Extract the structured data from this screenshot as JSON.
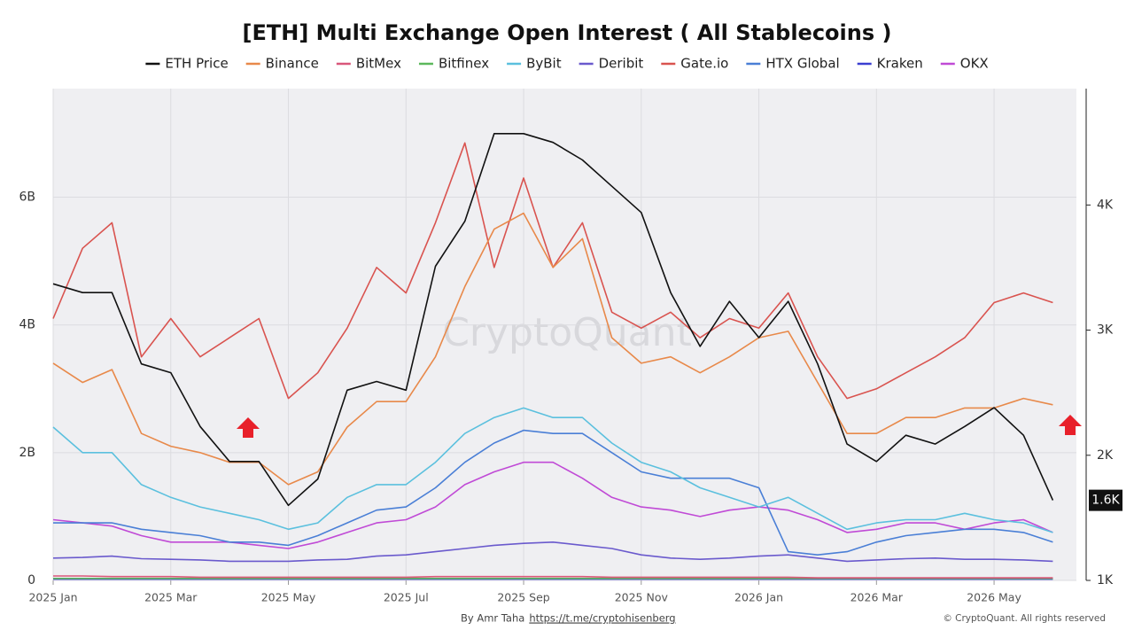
{
  "chart_data": {
    "type": "line",
    "title": "[ETH] Multi Exchange Open Interest ( All Stablecoins )",
    "watermark": "CryptoQuant",
    "x": [
      0,
      0.5,
      1,
      1.5,
      2,
      2.5,
      3,
      3.5,
      4,
      4.5,
      5,
      5.5,
      6,
      6.5,
      7,
      7.5,
      8,
      8.5,
      9,
      9.5,
      10,
      10.5,
      11,
      11.5,
      12,
      12.5,
      13,
      13.5,
      14,
      14.5,
      15,
      15.5,
      16,
      16.5,
      17
    ],
    "xlim": [
      0,
      17.4
    ],
    "xticks": [
      {
        "value": 0,
        "label": "2025 Jan"
      },
      {
        "value": 2,
        "label": "2025 Mar"
      },
      {
        "value": 4,
        "label": "2025 May"
      },
      {
        "value": 6,
        "label": "2025 Jul"
      },
      {
        "value": 8,
        "label": "2025 Sep"
      },
      {
        "value": 10,
        "label": "2025 Nov"
      },
      {
        "value": 12,
        "label": "2026 Jan"
      },
      {
        "value": 14,
        "label": "2026 Mar"
      },
      {
        "value": 16,
        "label": "2026 May"
      }
    ],
    "ylim": [
      0,
      7.7
    ],
    "yticks": [
      0,
      {
        "value": 2,
        "label": "2B"
      },
      {
        "value": 4,
        "label": "4B"
      },
      {
        "value": 6,
        "label": "6B"
      }
    ],
    "y2lim": [
      1000,
      4930
    ],
    "y2ticks": [
      {
        "value": 1000,
        "label": "1K"
      },
      {
        "value": 2000,
        "label": "2K"
      },
      {
        "value": 3000,
        "label": "3K"
      },
      {
        "value": 4000,
        "label": "4K"
      }
    ],
    "price_label": {
      "value": 1640,
      "label": "1.6K"
    },
    "grid": true,
    "legend": "top",
    "series": [
      {
        "name": "ETH Price",
        "color": "#111111",
        "axis": "y2",
        "values": [
          3370,
          3300,
          3300,
          2730,
          2660,
          2230,
          1950,
          1950,
          1600,
          1810,
          2520,
          2590,
          2520,
          3510,
          3870,
          4570,
          4570,
          4500,
          4360,
          4150,
          3940,
          3300,
          2870,
          3230,
          2940,
          3230,
          2730,
          2090,
          1950,
          2160,
          2090,
          2230,
          2380,
          2160,
          1640
        ]
      },
      {
        "name": "Binance",
        "color": "#e8894a",
        "values": [
          3.4,
          3.1,
          3.3,
          2.3,
          2.1,
          2.0,
          1.85,
          1.85,
          1.5,
          1.7,
          2.4,
          2.8,
          2.8,
          3.5,
          4.6,
          5.5,
          5.75,
          4.9,
          5.35,
          3.8,
          3.4,
          3.5,
          3.25,
          3.5,
          3.8,
          3.9,
          3.1,
          2.3,
          2.3,
          2.55,
          2.55,
          2.7,
          2.7,
          2.85,
          2.75
        ]
      },
      {
        "name": "BitMex",
        "color": "#d9577a",
        "values": [
          0.07,
          0.07,
          0.06,
          0.06,
          0.06,
          0.05,
          0.05,
          0.05,
          0.05,
          0.05,
          0.05,
          0.05,
          0.05,
          0.06,
          0.06,
          0.06,
          0.06,
          0.06,
          0.06,
          0.05,
          0.05,
          0.05,
          0.05,
          0.05,
          0.05,
          0.05,
          0.04,
          0.04,
          0.04,
          0.04,
          0.04,
          0.04,
          0.04,
          0.04,
          0.04
        ]
      },
      {
        "name": "Bitfinex",
        "color": "#5cb85c",
        "values": [
          0.03,
          0.03,
          0.03,
          0.03,
          0.03,
          0.03,
          0.03,
          0.03,
          0.03,
          0.03,
          0.03,
          0.03,
          0.03,
          0.03,
          0.03,
          0.03,
          0.03,
          0.03,
          0.03,
          0.03,
          0.03,
          0.03,
          0.03,
          0.03,
          0.03,
          0.03,
          0.03,
          0.03,
          0.03,
          0.03,
          0.03,
          0.03,
          0.03,
          0.03,
          0.03
        ]
      },
      {
        "name": "ByBit",
        "color": "#5bc0de",
        "values": [
          2.4,
          2.0,
          2.0,
          1.5,
          1.3,
          1.15,
          1.05,
          0.95,
          0.8,
          0.9,
          1.3,
          1.5,
          1.5,
          1.85,
          2.3,
          2.55,
          2.7,
          2.55,
          2.55,
          2.15,
          1.85,
          1.7,
          1.45,
          1.3,
          1.15,
          1.3,
          1.05,
          0.8,
          0.9,
          0.95,
          0.95,
          1.05,
          0.95,
          0.9,
          0.75
        ]
      },
      {
        "name": "Deribit",
        "color": "#6a5acd",
        "values": [
          0.35,
          0.36,
          0.38,
          0.34,
          0.33,
          0.32,
          0.3,
          0.3,
          0.3,
          0.32,
          0.33,
          0.38,
          0.4,
          0.45,
          0.5,
          0.55,
          0.58,
          0.6,
          0.55,
          0.5,
          0.4,
          0.35,
          0.33,
          0.35,
          0.38,
          0.4,
          0.35,
          0.3,
          0.32,
          0.34,
          0.35,
          0.33,
          0.33,
          0.32,
          0.3
        ]
      },
      {
        "name": "Gate.io",
        "color": "#d9534f",
        "values": [
          4.1,
          5.2,
          5.6,
          3.5,
          4.1,
          3.5,
          3.8,
          4.1,
          2.85,
          3.25,
          3.95,
          4.9,
          4.5,
          5.6,
          6.85,
          4.9,
          6.3,
          4.9,
          5.6,
          4.2,
          3.95,
          4.2,
          3.8,
          4.1,
          3.95,
          4.5,
          3.5,
          2.85,
          3.0,
          3.25,
          3.5,
          3.8,
          4.35,
          4.5,
          4.35
        ]
      },
      {
        "name": "HTX Global",
        "color": "#4a7fd6",
        "values": [
          0.9,
          0.9,
          0.9,
          0.8,
          0.75,
          0.7,
          0.6,
          0.6,
          0.55,
          0.7,
          0.9,
          1.1,
          1.15,
          1.45,
          1.85,
          2.15,
          2.35,
          2.3,
          2.3,
          2.0,
          1.7,
          1.6,
          1.6,
          1.6,
          1.45,
          0.45,
          0.4,
          0.45,
          0.6,
          0.7,
          0.75,
          0.8,
          0.8,
          0.75,
          0.6
        ]
      },
      {
        "name": "Kraken",
        "color": "#3b3fd1",
        "values": [
          0.02,
          0.02,
          0.02,
          0.02,
          0.02,
          0.02,
          0.02,
          0.02,
          0.02,
          0.02,
          0.02,
          0.02,
          0.02,
          0.02,
          0.02,
          0.02,
          0.02,
          0.02,
          0.02,
          0.02,
          0.02,
          0.02,
          0.02,
          0.02,
          0.02,
          0.02,
          0.02,
          0.02,
          0.02,
          0.02,
          0.02,
          0.02,
          0.02,
          0.02,
          0.02
        ]
      },
      {
        "name": "OKX",
        "color": "#c04ad6",
        "values": [
          0.95,
          0.9,
          0.85,
          0.7,
          0.6,
          0.6,
          0.6,
          0.55,
          0.5,
          0.6,
          0.75,
          0.9,
          0.95,
          1.15,
          1.5,
          1.7,
          1.85,
          1.85,
          1.6,
          1.3,
          1.15,
          1.1,
          1.0,
          1.1,
          1.15,
          1.1,
          0.95,
          0.75,
          0.8,
          0.9,
          0.9,
          0.8,
          0.9,
          0.95,
          0.75
        ]
      }
    ]
  },
  "footer": {
    "credit": "By Amr Taha",
    "link": "https://t.me/cryptohisenberg",
    "copyright": "© CryptoQuant. All rights reserved"
  }
}
